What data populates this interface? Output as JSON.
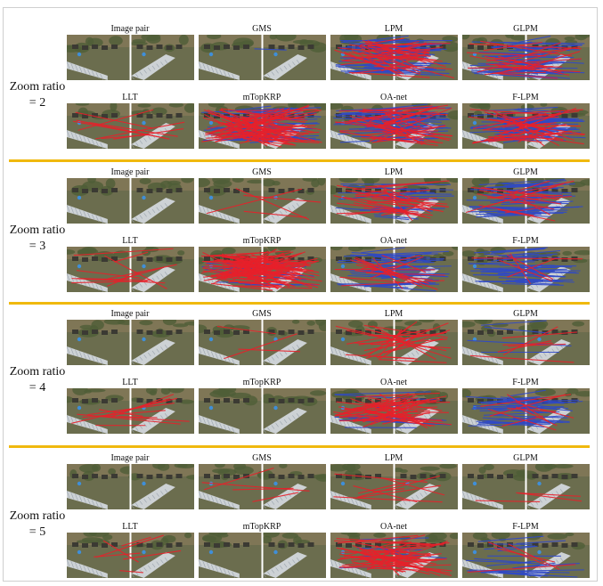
{
  "colors": {
    "separator": "#f0b90e",
    "inlier_line": "#2f49c8",
    "outlier_line": "#e8202a",
    "water": "#6b6d4e",
    "bridge": "#d8dde4",
    "divider": "#ffffff"
  },
  "method_labels": [
    "Image pair",
    "GMS",
    "LPM",
    "GLPM",
    "LLT",
    "mTopKRP",
    "OA-net",
    "F-LPM"
  ],
  "groups": [
    {
      "label_line1": "Zoom ratio",
      "label_line2": "= 2",
      "cells": [
        {
          "title": "Image pair",
          "inliers": 0,
          "outliers": 0
        },
        {
          "title": "GMS",
          "inliers": 1,
          "outliers": 0
        },
        {
          "title": "LPM",
          "inliers": 45,
          "outliers": 35
        },
        {
          "title": "GLPM",
          "inliers": 40,
          "outliers": 20
        },
        {
          "title": "LLT",
          "inliers": 0,
          "outliers": 8
        },
        {
          "title": "mTopKRP",
          "inliers": 30,
          "outliers": 60
        },
        {
          "title": "OA-net",
          "inliers": 45,
          "outliers": 35
        },
        {
          "title": "F-LPM",
          "inliers": 40,
          "outliers": 30
        }
      ]
    },
    {
      "label_line1": "Zoom ratio",
      "label_line2": "= 3",
      "cells": [
        {
          "title": "Image pair",
          "inliers": 0,
          "outliers": 0
        },
        {
          "title": "GMS",
          "inliers": 0,
          "outliers": 4
        },
        {
          "title": "LPM",
          "inliers": 20,
          "outliers": 25
        },
        {
          "title": "GLPM",
          "inliers": 35,
          "outliers": 15
        },
        {
          "title": "LLT",
          "inliers": 0,
          "outliers": 10
        },
        {
          "title": "mTopKRP",
          "inliers": 10,
          "outliers": 80
        },
        {
          "title": "OA-net",
          "inliers": 35,
          "outliers": 15
        },
        {
          "title": "F-LPM",
          "inliers": 40,
          "outliers": 5
        }
      ]
    },
    {
      "label_line1": "Zoom ratio",
      "label_line2": "= 4",
      "cells": [
        {
          "title": "Image pair",
          "inliers": 0,
          "outliers": 0
        },
        {
          "title": "GMS",
          "inliers": 0,
          "outliers": 3
        },
        {
          "title": "LPM",
          "inliers": 0,
          "outliers": 25
        },
        {
          "title": "GLPM",
          "inliers": 4,
          "outliers": 6
        },
        {
          "title": "LLT",
          "inliers": 0,
          "outliers": 10
        },
        {
          "title": "mTopKRP",
          "inliers": 0,
          "outliers": 0
        },
        {
          "title": "OA-net",
          "inliers": 8,
          "outliers": 40
        },
        {
          "title": "F-LPM",
          "inliers": 35,
          "outliers": 8
        }
      ]
    },
    {
      "label_line1": "Zoom ratio",
      "label_line2": "= 5",
      "cells": [
        {
          "title": "Image pair",
          "inliers": 0,
          "outliers": 0
        },
        {
          "title": "GMS",
          "inliers": 0,
          "outliers": 4
        },
        {
          "title": "LPM",
          "inliers": 0,
          "outliers": 8
        },
        {
          "title": "GLPM",
          "inliers": 0,
          "outliers": 3
        },
        {
          "title": "LLT",
          "inliers": 0,
          "outliers": 6
        },
        {
          "title": "mTopKRP",
          "inliers": 0,
          "outliers": 0
        },
        {
          "title": "OA-net",
          "inliers": 6,
          "outliers": 40
        },
        {
          "title": "F-LPM",
          "inliers": 20,
          "outliers": 4
        }
      ]
    }
  ]
}
